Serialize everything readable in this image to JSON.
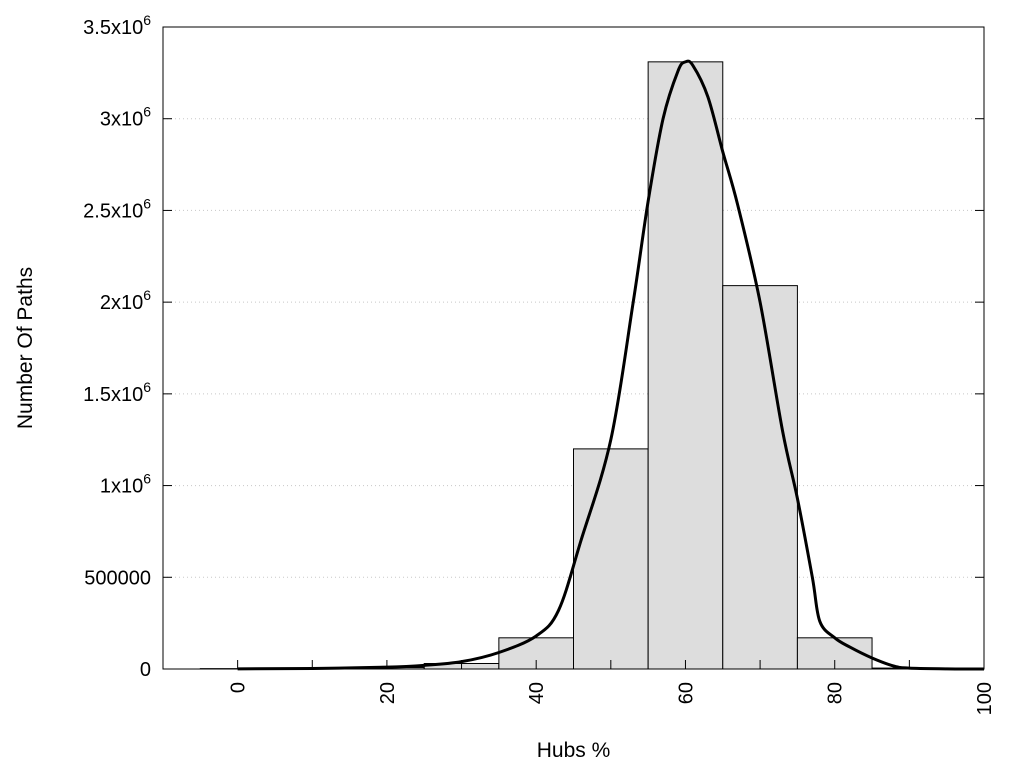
{
  "chart_data": {
    "type": "bar",
    "title": "",
    "xlabel": "Hubs %",
    "ylabel": "Number Of Paths",
    "xlim": [
      -10,
      100
    ],
    "ylim": [
      0,
      3500000
    ],
    "grid": "horizontal dotted",
    "legend": "none",
    "x_ticks": [
      {
        "value": 0,
        "label": "0"
      },
      {
        "value": 20,
        "label": "20"
      },
      {
        "value": 40,
        "label": "40"
      },
      {
        "value": 60,
        "label": "60"
      },
      {
        "value": 80,
        "label": "80"
      },
      {
        "value": 100,
        "label": "100"
      }
    ],
    "y_ticks": [
      {
        "value": 0,
        "base": "0",
        "exp": ""
      },
      {
        "value": 500000,
        "base": "500000",
        "exp": ""
      },
      {
        "value": 1000000,
        "base": "1x10",
        "exp": "6"
      },
      {
        "value": 1500000,
        "base": "1.5x10",
        "exp": "6"
      },
      {
        "value": 2000000,
        "base": "2x10",
        "exp": "6"
      },
      {
        "value": 2500000,
        "base": "2.5x10",
        "exp": "6"
      },
      {
        "value": 3000000,
        "base": "3x10",
        "exp": "6"
      },
      {
        "value": 3500000,
        "base": "3.5x10",
        "exp": "6"
      }
    ],
    "bars": [
      {
        "center": 0,
        "width": 10,
        "value": 2000
      },
      {
        "center": 10,
        "width": 10,
        "value": 4000
      },
      {
        "center": 20,
        "width": 10,
        "value": 8000
      },
      {
        "center": 30,
        "width": 10,
        "value": 30000
      },
      {
        "center": 40,
        "width": 10,
        "value": 170000
      },
      {
        "center": 50,
        "width": 10,
        "value": 1200000
      },
      {
        "center": 60,
        "width": 10,
        "value": 3310000
      },
      {
        "center": 70,
        "width": 10,
        "value": 2090000
      },
      {
        "center": 80,
        "width": 10,
        "value": 170000
      },
      {
        "center": 90,
        "width": 10,
        "value": 5000
      }
    ],
    "curve": {
      "x": [
        0,
        10,
        20,
        25,
        30,
        35,
        40,
        43,
        46,
        50,
        53,
        55,
        57,
        59,
        60,
        61,
        63,
        65,
        67,
        70,
        73,
        75,
        77,
        78,
        80,
        82,
        85,
        88,
        90,
        95,
        98,
        100
      ],
      "y": [
        1000,
        3000,
        10000,
        20000,
        40000,
        90000,
        180000,
        320000,
        700000,
        1250000,
        2000000,
        2550000,
        3000000,
        3260000,
        3310000,
        3290000,
        3120000,
        2820000,
        2530000,
        2000000,
        1300000,
        930000,
        500000,
        260000,
        170000,
        120000,
        60000,
        15000,
        5000,
        1000,
        0,
        0
      ]
    },
    "colors": {
      "bar_fill": "#dddddd",
      "bar_stroke": "#000000",
      "curve": "#000000",
      "grid": "#c8c8c8"
    }
  }
}
